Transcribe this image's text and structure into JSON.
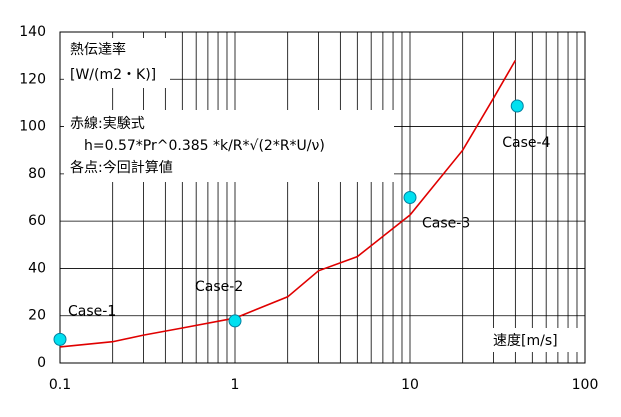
{
  "chart_data": {
    "type": "scatter-line",
    "xscale": "log",
    "xlim": [
      0.1,
      100
    ],
    "xticks": [
      0.1,
      1,
      10,
      100
    ],
    "xminor_ticks": [
      0.2,
      0.3,
      0.4,
      0.5,
      0.6,
      0.7,
      0.8,
      0.9,
      2,
      3,
      4,
      5,
      6,
      7,
      8,
      9,
      20,
      30,
      40,
      50,
      60,
      70,
      80,
      90
    ],
    "ylim": [
      0,
      140
    ],
    "yticks": [
      0,
      20,
      40,
      60,
      80,
      100,
      120,
      140
    ],
    "grid": true,
    "x_label": "速度[m/s]",
    "annotations": [
      "熱伝達率",
      "[W/(m2・K)]",
      "赤線:実験式",
      "h=0.57*Pr^0.385 *k/R*√(2*R*U/ν)",
      "各点:今回計算値"
    ],
    "series": [
      {
        "kind": "line",
        "color": "#e00000",
        "x": [
          0.1,
          0.2,
          0.3,
          0.5,
          1,
          2,
          3,
          5,
          10,
          20,
          30,
          40
        ],
        "values": [
          6.8,
          9,
          11.8,
          14.8,
          19,
          28,
          39,
          45,
          62.6,
          90,
          112,
          128
        ]
      },
      {
        "kind": "points",
        "color": "#00e0f0",
        "x": [
          0.1,
          1,
          10,
          41
        ],
        "values": [
          10,
          17.8,
          70,
          108.7
        ],
        "labels": [
          "Case-1",
          "Case-2",
          "Case-3",
          "Case-4"
        ]
      }
    ]
  }
}
